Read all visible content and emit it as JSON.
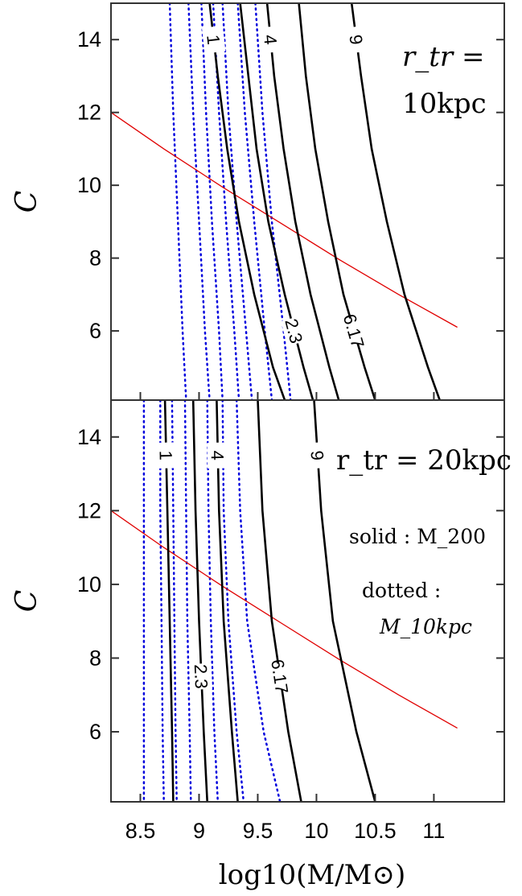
{
  "chart_data": [
    {
      "type": "line",
      "panel": "top",
      "annotation": [
        "r_tr =",
        "10kpc"
      ],
      "xlim": [
        8.25,
        11.6
      ],
      "ylim": [
        4.1,
        15
      ],
      "grid": false,
      "y_ticks": [
        6,
        8,
        10,
        12,
        14
      ],
      "x_ticks": [],
      "ylabel": "C",
      "contours_m200": [
        {
          "label": "1",
          "points": [
            [
              9.09,
              15
            ],
            [
              9.16,
              13
            ],
            [
              9.24,
              11
            ],
            [
              9.34,
              9
            ],
            [
              9.47,
              7
            ],
            [
              9.63,
              5
            ],
            [
              9.73,
              4.1
            ]
          ]
        },
        {
          "label": "2.3",
          "points": [
            [
              9.35,
              15
            ],
            [
              9.42,
              13
            ],
            [
              9.49,
              11
            ],
            [
              9.59,
              9
            ],
            [
              9.73,
              7
            ],
            [
              9.89,
              5
            ],
            [
              9.97,
              4.1
            ]
          ]
        },
        {
          "label": "4",
          "points": [
            [
              9.58,
              15
            ],
            [
              9.64,
              13
            ],
            [
              9.72,
              11
            ],
            [
              9.82,
              9
            ],
            [
              9.95,
              7
            ],
            [
              10.11,
              5
            ],
            [
              10.19,
              4.1
            ]
          ]
        },
        {
          "label": "6.17",
          "points": [
            [
              9.85,
              15
            ],
            [
              9.91,
              13
            ],
            [
              9.99,
              11
            ],
            [
              10.1,
              9
            ],
            [
              10.23,
              7
            ],
            [
              10.41,
              5
            ],
            [
              10.5,
              4.1
            ]
          ]
        },
        {
          "label": "9",
          "points": [
            [
              10.3,
              15
            ],
            [
              10.38,
              13
            ],
            [
              10.47,
              11
            ],
            [
              10.6,
              9
            ],
            [
              10.75,
              7
            ],
            [
              10.95,
              5
            ],
            [
              11.05,
              4.1
            ]
          ]
        }
      ],
      "contours_m10kpc": [
        {
          "points": [
            [
              8.75,
              15
            ],
            [
              8.78,
              12
            ],
            [
              8.82,
              9
            ],
            [
              8.86,
              6
            ],
            [
              8.89,
              4.1
            ]
          ]
        },
        {
          "points": [
            [
              8.91,
              15
            ],
            [
              8.95,
              12
            ],
            [
              9.0,
              9
            ],
            [
              9.05,
              6
            ],
            [
              9.09,
              4.1
            ]
          ]
        },
        {
          "points": [
            [
              9.02,
              15
            ],
            [
              9.06,
              12
            ],
            [
              9.11,
              9
            ],
            [
              9.17,
              6
            ],
            [
              9.2,
              4.1
            ]
          ]
        },
        {
          "points": [
            [
              9.12,
              15
            ],
            [
              9.17,
              12
            ],
            [
              9.23,
              9
            ],
            [
              9.3,
              6
            ],
            [
              9.34,
              4.1
            ]
          ]
        },
        {
          "points": [
            [
              9.2,
              15
            ],
            [
              9.25,
              12
            ],
            [
              9.32,
              9
            ],
            [
              9.4,
              6
            ],
            [
              9.45,
              4.1
            ]
          ]
        },
        {
          "points": [
            [
              9.33,
              15
            ],
            [
              9.39,
              12
            ],
            [
              9.47,
              9
            ],
            [
              9.56,
              6
            ],
            [
              9.62,
              4.1
            ]
          ]
        },
        {
          "points": [
            [
              9.48,
              15
            ],
            [
              9.54,
              12
            ],
            [
              9.62,
              9
            ],
            [
              9.72,
              6
            ],
            [
              9.78,
              4.1
            ]
          ]
        }
      ],
      "red_curve": [
        [
          8.25,
          12
        ],
        [
          8.7,
          11.0
        ],
        [
          9.2,
          9.95
        ],
        [
          9.7,
          8.95
        ],
        [
          10.2,
          7.95
        ],
        [
          10.7,
          7.0
        ],
        [
          11.2,
          6.1
        ]
      ]
    },
    {
      "type": "line",
      "panel": "bottom",
      "annotation": [
        "r_tr = 20kpc"
      ],
      "legend_text": [
        "solid : M_200",
        "dotted :",
        "M_10kpc"
      ],
      "xlim": [
        8.25,
        11.6
      ],
      "ylim": [
        4.1,
        15
      ],
      "grid": false,
      "y_ticks": [
        6,
        8,
        10,
        12,
        14
      ],
      "x_ticks": [
        "8.5",
        "9",
        "9.5",
        "10",
        "10.5",
        "11"
      ],
      "x_tick_values": [
        8.5,
        9,
        9.5,
        10,
        10.5,
        11
      ],
      "xlabel": "log10(M/M⊙)",
      "ylabel": "C",
      "contours_m200": [
        {
          "label": "1",
          "points": [
            [
              8.71,
              15
            ],
            [
              8.73,
              12
            ],
            [
              8.75,
              9
            ],
            [
              8.77,
              6
            ],
            [
              8.78,
              4.1
            ]
          ]
        },
        {
          "label": "2.3",
          "points": [
            [
              8.95,
              15
            ],
            [
              8.97,
              12
            ],
            [
              9.0,
              9
            ],
            [
              9.04,
              6
            ],
            [
              9.07,
              4.1
            ]
          ]
        },
        {
          "label": "4",
          "points": [
            [
              9.15,
              15
            ],
            [
              9.17,
              12
            ],
            [
              9.21,
              9
            ],
            [
              9.28,
              6
            ],
            [
              9.33,
              4.1
            ]
          ]
        },
        {
          "label": "6.17",
          "points": [
            [
              9.5,
              15
            ],
            [
              9.54,
              12
            ],
            [
              9.62,
              9
            ],
            [
              9.76,
              6
            ],
            [
              9.87,
              4.1
            ]
          ]
        },
        {
          "label": "9",
          "points": [
            [
              9.98,
              15
            ],
            [
              10.04,
              12
            ],
            [
              10.14,
              9
            ],
            [
              10.34,
              6
            ],
            [
              10.5,
              4.1
            ]
          ]
        }
      ],
      "contours_m10kpc": [
        {
          "points": [
            [
              8.53,
              15
            ],
            [
              8.53,
              12
            ],
            [
              8.53,
              9
            ],
            [
              8.53,
              6
            ],
            [
              8.53,
              4.1
            ]
          ]
        },
        {
          "points": [
            [
              8.67,
              15
            ],
            [
              8.67,
              12
            ],
            [
              8.68,
              9
            ],
            [
              8.69,
              6
            ],
            [
              8.7,
              4.1
            ]
          ]
        },
        {
          "points": [
            [
              8.77,
              15
            ],
            [
              8.78,
              12
            ],
            [
              8.79,
              9
            ],
            [
              8.8,
              6
            ],
            [
              8.81,
              4.1
            ]
          ]
        },
        {
          "points": [
            [
              8.88,
              15
            ],
            [
              8.89,
              12
            ],
            [
              8.9,
              9
            ],
            [
              8.92,
              6
            ],
            [
              8.93,
              4.1
            ]
          ]
        },
        {
          "points": [
            [
              9.07,
              15
            ],
            [
              9.08,
              12
            ],
            [
              9.1,
              9
            ],
            [
              9.13,
              6
            ],
            [
              9.16,
              4.1
            ]
          ]
        },
        {
          "points": [
            [
              9.2,
              15
            ],
            [
              9.21,
              12
            ],
            [
              9.25,
              9
            ],
            [
              9.32,
              6
            ],
            [
              9.38,
              4.1
            ]
          ]
        },
        {
          "points": [
            [
              9.32,
              15
            ],
            [
              9.35,
              12
            ],
            [
              9.41,
              9
            ],
            [
              9.55,
              6
            ],
            [
              9.69,
              4.1
            ]
          ]
        }
      ],
      "red_curve": [
        [
          8.25,
          12
        ],
        [
          8.7,
          11.0
        ],
        [
          9.2,
          9.95
        ],
        [
          9.7,
          8.95
        ],
        [
          10.2,
          7.95
        ],
        [
          10.7,
          7.0
        ],
        [
          11.2,
          6.1
        ]
      ]
    }
  ],
  "colors": {
    "solid": "#000000",
    "dotted": "#0000dd",
    "red": "#e00000",
    "axes": "#333333"
  }
}
